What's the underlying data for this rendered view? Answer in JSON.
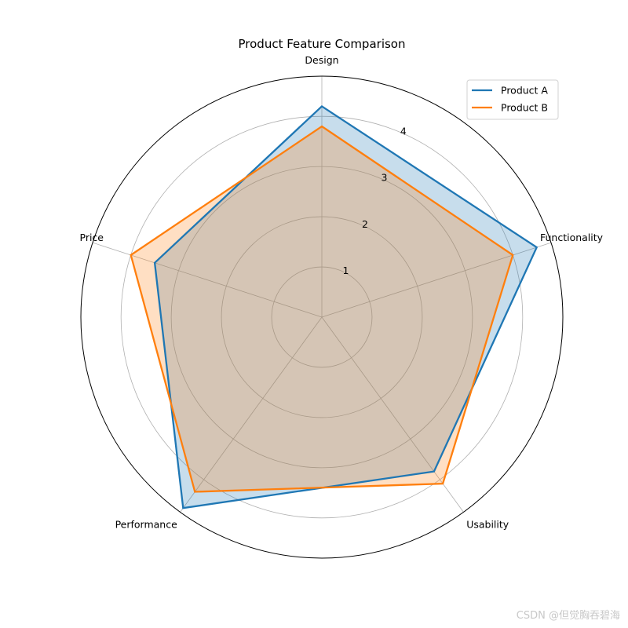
{
  "chart_data": {
    "type": "radar",
    "title": "Product Feature Comparison",
    "categories": [
      "Design",
      "Functionality",
      "Usability",
      "Performance",
      "Price"
    ],
    "rlim": [
      0,
      4.8
    ],
    "rticks": [
      1,
      2,
      3,
      4
    ],
    "rtick_labels": [
      "1",
      "2",
      "3",
      "4"
    ],
    "grid": true,
    "legend_position": "top-right",
    "series": [
      {
        "name": "Product A",
        "values": [
          4.2,
          4.5,
          3.8,
          4.7,
          3.5
        ],
        "color": "#1f77b4"
      },
      {
        "name": "Product B",
        "values": [
          3.8,
          4.0,
          4.1,
          4.3,
          4.0
        ],
        "color": "#ff7f0e"
      }
    ]
  },
  "watermark": "CSDN @但觉胸吞碧海"
}
